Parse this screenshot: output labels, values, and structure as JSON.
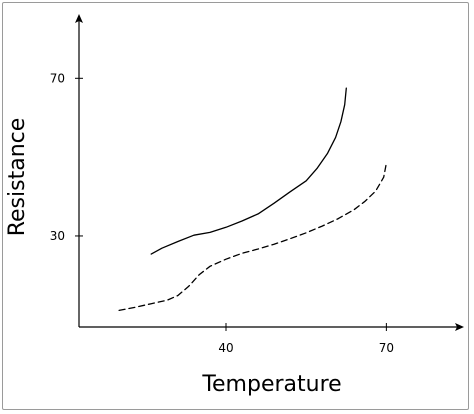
{
  "chart_data": {
    "type": "line",
    "title": "",
    "xlabel": "Temperature",
    "ylabel": "Resistance",
    "xticks": [
      40,
      70
    ],
    "yticks": [
      30,
      70
    ],
    "xlim": [
      12.5,
      83.4
    ],
    "ylim": [
      6.9,
      85.3
    ],
    "grid": false,
    "series": [
      {
        "style": "solid",
        "x": [
          26,
          28,
          31,
          34,
          37,
          40,
          43,
          46,
          49,
          52,
          55,
          57,
          59,
          60.5,
          61.5,
          62.2,
          62.5
        ],
        "y": [
          25.4,
          26.9,
          28.6,
          30.2,
          30.9,
          32.2,
          33.8,
          35.6,
          38.3,
          41.2,
          44.0,
          47.1,
          51.0,
          55.0,
          59.0,
          63.3,
          67.5
        ]
      },
      {
        "style": "dashed",
        "x": [
          20,
          23,
          26,
          29,
          31,
          33,
          35,
          37,
          40,
          43,
          46,
          49,
          52,
          55,
          58,
          61,
          64,
          66,
          68,
          69.5,
          70
        ],
        "y": [
          11.1,
          11.9,
          12.8,
          13.7,
          14.9,
          17.2,
          20.2,
          22.3,
          24.1,
          25.6,
          26.7,
          27.9,
          29.3,
          30.8,
          32.5,
          34.4,
          36.7,
          38.8,
          41.4,
          44.9,
          48.5
        ]
      }
    ]
  }
}
